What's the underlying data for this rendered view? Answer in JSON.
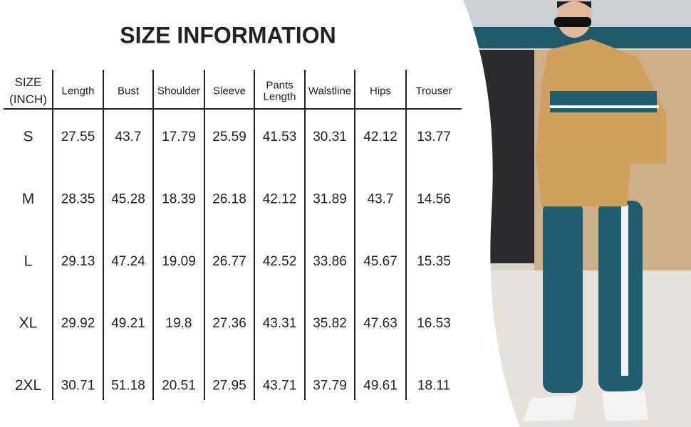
{
  "header": {
    "title": "SIZE INFORMATION"
  },
  "table": {
    "columns": [
      [
        "SIZE",
        "(INCH)"
      ],
      [
        "Length"
      ],
      [
        "Bust"
      ],
      [
        "Shoulder"
      ],
      [
        "Sleeve"
      ],
      [
        "Pants",
        "Length"
      ],
      [
        "Walstline"
      ],
      [
        "Hips"
      ],
      [
        "Trouser"
      ]
    ],
    "rows": [
      [
        "S",
        27.55,
        43.7,
        17.79,
        25.59,
        41.53,
        30.31,
        42.12,
        13.77
      ],
      [
        "M",
        28.35,
        45.28,
        18.39,
        26.18,
        42.12,
        31.89,
        43.7,
        14.56
      ],
      [
        "L",
        29.13,
        47.24,
        19.09,
        26.77,
        42.52,
        33.86,
        45.67,
        15.35
      ],
      [
        "XL",
        29.92,
        49.21,
        19.8,
        27.36,
        43.31,
        35.82,
        47.63,
        16.53
      ],
      [
        "2XL",
        30.71,
        51.18,
        20.51,
        27.95,
        43.71,
        37.79,
        49.61,
        18.11
      ]
    ]
  }
}
